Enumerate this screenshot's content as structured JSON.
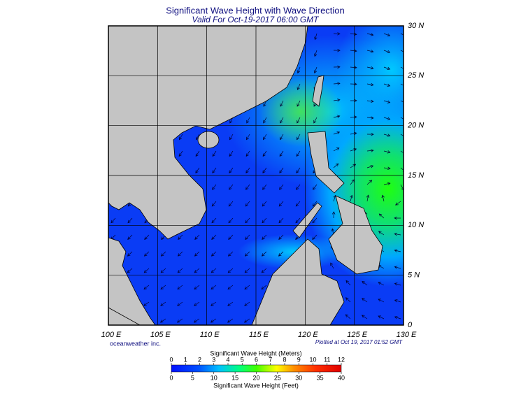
{
  "header": {
    "title": "Significant Wave Height with Wave Direction",
    "subtitle": "Valid For Oct-19-2017 06:00 GMT"
  },
  "map": {
    "lon_range": [
      100,
      130
    ],
    "lat_range": [
      0,
      30
    ],
    "lon_ticks": [
      {
        "value": 100,
        "label": "100 E"
      },
      {
        "value": 105,
        "label": "105 E"
      },
      {
        "value": 110,
        "label": "110 E"
      },
      {
        "value": 115,
        "label": "115 E"
      },
      {
        "value": 120,
        "label": "120 E"
      },
      {
        "value": 125,
        "label": "125 E"
      },
      {
        "value": 130,
        "label": "130 E"
      }
    ],
    "lat_ticks": [
      {
        "value": 0,
        "label": "0"
      },
      {
        "value": 5,
        "label": "5 N"
      },
      {
        "value": 10,
        "label": "10 N"
      },
      {
        "value": 15,
        "label": "15 N"
      },
      {
        "value": 20,
        "label": "20 N"
      },
      {
        "value": 25,
        "label": "25 N"
      },
      {
        "value": 30,
        "label": "30 N"
      }
    ]
  },
  "footer": {
    "credit": "oceanweather inc.",
    "plotted": "Plotted at Oct 19, 2017 01:52 GMT"
  },
  "colorbar": {
    "title_top": "Significant Wave Height (Meters)",
    "meters_range": [
      0,
      12
    ],
    "meters_ticks": [
      0,
      1,
      2,
      3,
      4,
      5,
      6,
      7,
      8,
      9,
      10,
      11,
      12
    ],
    "feet_range": [
      0,
      40
    ],
    "feet_ticks": [
      0,
      5,
      10,
      15,
      20,
      25,
      30,
      35,
      40
    ],
    "title_bottom": "Significant Wave Height (Feet)"
  }
}
